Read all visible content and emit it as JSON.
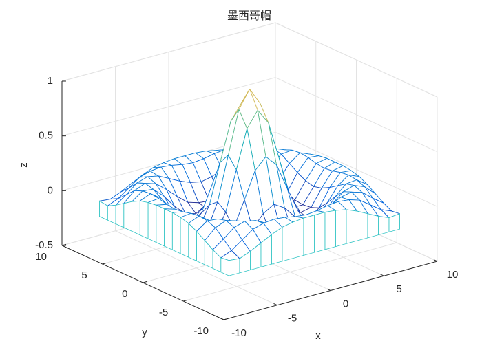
{
  "chart_data": {
    "type": "surface",
    "title": "墨西哥帽",
    "xlabel": "x",
    "ylabel": "y",
    "zlabel": "z",
    "x": [
      -8,
      -7,
      -6,
      -5,
      -4,
      -3,
      -2,
      -1,
      0,
      1,
      2,
      3,
      4,
      5,
      6,
      7,
      8
    ],
    "y": [
      -8,
      -7,
      -6,
      -5,
      -4,
      -3,
      -2,
      -1,
      0,
      1,
      2,
      3,
      4,
      5,
      6,
      7,
      8
    ],
    "z": [
      [
        -0.08,
        -0.09,
        -0.05,
        0.0,
        0.05,
        0.09,
        0.11,
        0.12,
        0.12,
        0.12,
        0.11,
        0.09,
        0.05,
        0.0,
        -0.05,
        -0.09,
        -0.08
      ],
      [
        -0.09,
        -0.05,
        0.02,
        0.09,
        0.12,
        0.13,
        0.12,
        0.1,
        0.09,
        0.1,
        0.12,
        0.13,
        0.12,
        0.09,
        0.02,
        -0.05,
        -0.09
      ],
      [
        -0.05,
        0.02,
        0.1,
        0.13,
        0.11,
        0.06,
        0.01,
        -0.03,
        -0.05,
        -0.03,
        0.01,
        0.06,
        0.11,
        0.13,
        0.1,
        0.02,
        -0.05
      ],
      [
        0.0,
        0.09,
        0.13,
        0.1,
        0.02,
        -0.07,
        -0.15,
        -0.18,
        -0.19,
        -0.18,
        -0.15,
        -0.07,
        0.02,
        0.1,
        0.13,
        0.09,
        0.0
      ],
      [
        0.05,
        0.12,
        0.11,
        0.02,
        -0.1,
        -0.19,
        -0.22,
        -0.2,
        -0.19,
        -0.2,
        -0.22,
        -0.19,
        -0.1,
        0.02,
        0.11,
        0.12,
        0.05
      ],
      [
        0.09,
        0.13,
        0.06,
        -0.07,
        -0.19,
        -0.21,
        -0.12,
        -0.01,
        0.05,
        -0.01,
        -0.12,
        -0.21,
        -0.19,
        -0.07,
        0.06,
        0.13,
        0.09
      ],
      [
        0.11,
        0.12,
        0.01,
        -0.15,
        -0.22,
        -0.12,
        0.11,
        0.35,
        0.45,
        0.35,
        0.11,
        -0.12,
        -0.22,
        -0.15,
        0.01,
        0.12,
        0.11
      ],
      [
        0.12,
        0.1,
        -0.03,
        -0.18,
        -0.2,
        -0.01,
        0.35,
        0.7,
        0.84,
        0.7,
        0.35,
        -0.01,
        -0.2,
        -0.18,
        -0.03,
        0.1,
        0.12
      ],
      [
        0.12,
        0.09,
        -0.05,
        -0.19,
        -0.19,
        0.05,
        0.45,
        0.84,
        1,
        0.84,
        0.45,
        0.05,
        -0.19,
        -0.19,
        -0.05,
        0.09,
        0.12
      ],
      [
        0.12,
        0.1,
        -0.03,
        -0.18,
        -0.2,
        -0.01,
        0.35,
        0.7,
        0.84,
        0.7,
        0.35,
        -0.01,
        -0.2,
        -0.18,
        -0.03,
        0.1,
        0.12
      ],
      [
        0.11,
        0.12,
        0.01,
        -0.15,
        -0.22,
        -0.12,
        0.11,
        0.35,
        0.45,
        0.35,
        0.11,
        -0.12,
        -0.22,
        -0.15,
        0.01,
        0.12,
        0.11
      ],
      [
        0.09,
        0.13,
        0.06,
        -0.07,
        -0.19,
        -0.21,
        -0.12,
        -0.01,
        0.05,
        -0.01,
        -0.12,
        -0.21,
        -0.19,
        -0.07,
        0.06,
        0.13,
        0.09
      ],
      [
        0.05,
        0.12,
        0.11,
        0.02,
        -0.1,
        -0.19,
        -0.22,
        -0.2,
        -0.19,
        -0.2,
        -0.22,
        -0.19,
        -0.1,
        0.02,
        0.11,
        0.12,
        0.05
      ],
      [
        0.0,
        0.09,
        0.13,
        0.1,
        0.02,
        -0.07,
        -0.15,
        -0.18,
        -0.19,
        -0.18,
        -0.15,
        -0.07,
        0.02,
        0.1,
        0.13,
        0.09,
        0.0
      ],
      [
        -0.05,
        0.02,
        0.1,
        0.13,
        0.11,
        0.06,
        0.01,
        -0.03,
        -0.05,
        -0.03,
        0.01,
        0.06,
        0.11,
        0.13,
        0.1,
        0.02,
        -0.05
      ],
      [
        -0.09,
        -0.05,
        0.02,
        0.09,
        0.12,
        0.13,
        0.12,
        0.1,
        0.09,
        0.1,
        0.12,
        0.13,
        0.12,
        0.09,
        0.02,
        -0.05,
        -0.09
      ],
      [
        -0.08,
        -0.09,
        -0.05,
        0.0,
        0.05,
        0.09,
        0.11,
        0.12,
        0.12,
        0.12,
        0.11,
        0.09,
        0.05,
        0.0,
        -0.05,
        -0.09,
        -0.08
      ]
    ],
    "xlim": [
      -10,
      10
    ],
    "ylim": [
      -10,
      10
    ],
    "zlim": [
      -0.5,
      1
    ],
    "xticks": [
      -10,
      -5,
      0,
      5,
      10
    ],
    "yticks": [
      -10,
      -5,
      0,
      5,
      10
    ],
    "zticks": [
      -0.5,
      0,
      0.5,
      1
    ],
    "grid": true,
    "colormap": "parula",
    "curtain": true,
    "curtain_color": "#2ec4c4"
  }
}
